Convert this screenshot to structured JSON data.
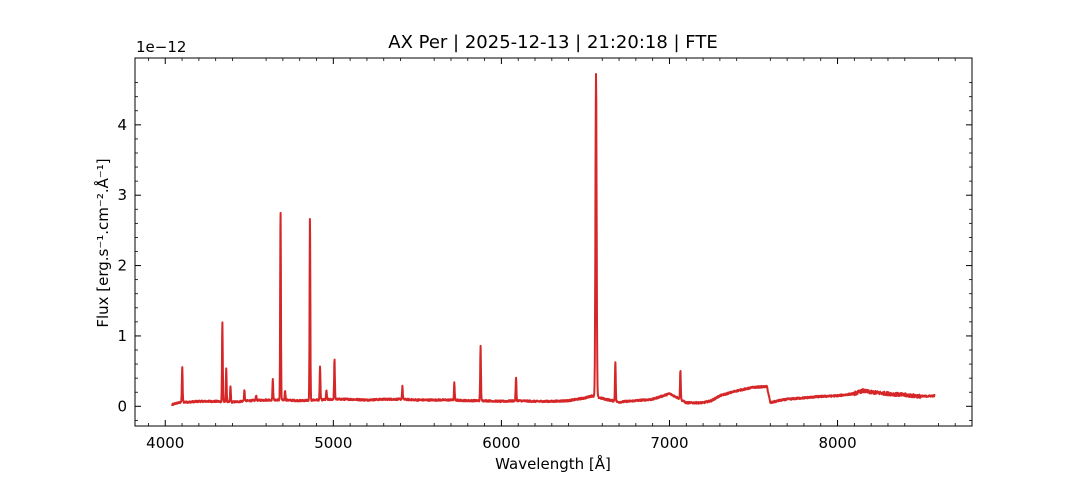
{
  "chart_data": {
    "type": "line",
    "title": "AX Per | 2025-12-13 | 21:20:18 | FTE",
    "xlabel": "Wavelength [Å]",
    "ylabel": "Flux [erg.s⁻¹.cm⁻².Å⁻¹]",
    "y_offset_label": "1e−12",
    "xlim": [
      3820,
      8800
    ],
    "ylim": [
      -0.28,
      4.95
    ],
    "xticks": [
      4000,
      5000,
      6000,
      7000,
      8000
    ],
    "yticks": [
      0,
      1,
      2,
      3,
      4
    ],
    "y_multiplier": 1e-12,
    "grid": false,
    "series": [
      {
        "color": "#d62728",
        "x": [
          4040,
          4060,
          4080,
          4100,
          4140,
          4200,
          4300,
          4400,
          4500,
          4600,
          4700,
          4800,
          4900,
          5000,
          5100,
          5200,
          5300,
          5400,
          5500,
          5600,
          5700,
          5800,
          5900,
          6000,
          6100,
          6200,
          6300,
          6400,
          6500,
          6540,
          6620,
          6700,
          6800,
          6900,
          7000,
          7050,
          7100,
          7200,
          7250,
          7300,
          7400,
          7500,
          7580,
          7600,
          7650,
          7700,
          7800,
          7900,
          8000,
          8100,
          8150,
          8200,
          8300,
          8400,
          8500,
          8580
        ],
        "y": [
          0.02,
          0.04,
          0.05,
          0.06,
          0.06,
          0.07,
          0.07,
          0.06,
          0.08,
          0.09,
          0.09,
          0.08,
          0.09,
          0.1,
          0.1,
          0.09,
          0.1,
          0.1,
          0.09,
          0.09,
          0.09,
          0.08,
          0.08,
          0.07,
          0.08,
          0.07,
          0.07,
          0.08,
          0.12,
          0.15,
          0.1,
          0.06,
          0.08,
          0.1,
          0.18,
          0.12,
          0.05,
          0.05,
          0.08,
          0.15,
          0.22,
          0.27,
          0.28,
          0.05,
          0.08,
          0.1,
          0.12,
          0.14,
          0.15,
          0.18,
          0.22,
          0.2,
          0.18,
          0.16,
          0.14,
          0.15
        ],
        "lines": [
          {
            "x": 4101,
            "y": 0.56
          },
          {
            "x": 4340,
            "y": 1.19
          },
          {
            "x": 4363,
            "y": 0.54
          },
          {
            "x": 4388,
            "y": 0.28
          },
          {
            "x": 4471,
            "y": 0.23
          },
          {
            "x": 4541,
            "y": 0.16
          },
          {
            "x": 4640,
            "y": 0.38
          },
          {
            "x": 4686,
            "y": 2.81
          },
          {
            "x": 4713,
            "y": 0.23
          },
          {
            "x": 4861,
            "y": 2.72
          },
          {
            "x": 4921,
            "y": 0.57
          },
          {
            "x": 4959,
            "y": 0.23
          },
          {
            "x": 5007,
            "y": 0.67
          },
          {
            "x": 5411,
            "y": 0.28
          },
          {
            "x": 5720,
            "y": 0.33
          },
          {
            "x": 5876,
            "y": 0.85
          },
          {
            "x": 6087,
            "y": 0.41
          },
          {
            "x": 6563,
            "y": 4.73
          },
          {
            "x": 6678,
            "y": 0.65
          },
          {
            "x": 7065,
            "y": 0.52
          }
        ]
      }
    ]
  }
}
